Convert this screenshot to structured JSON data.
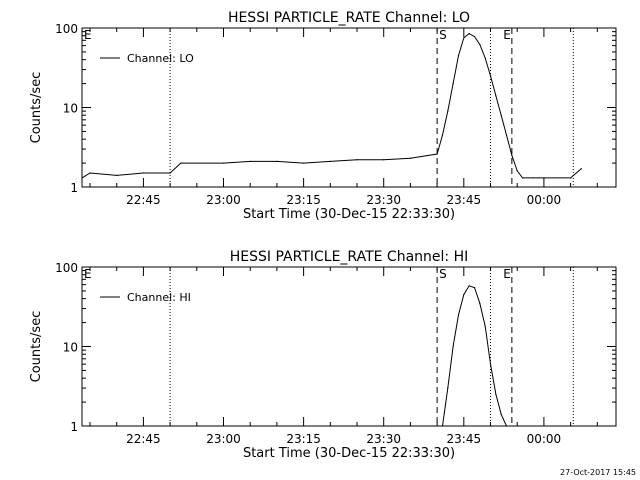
{
  "footer": {
    "timestamp": "27-Oct-2017 15:45"
  },
  "chart_data": [
    {
      "type": "line",
      "title": "HESSI PARTICLE_RATE Channel: LO",
      "xlabel": "Start Time (30-Dec-15 22:33:30)",
      "ylabel": "Counts/sec",
      "yscale": "log",
      "ylim": [
        1,
        100
      ],
      "xlim": [
        "22:33:30",
        "00:13:30"
      ],
      "xticks": [
        "22:45",
        "23:00",
        "23:15",
        "23:30",
        "23:45",
        "00:00"
      ],
      "yticks": [
        "1",
        "10",
        "100"
      ],
      "legend": {
        "position": "top-left",
        "entries": [
          "Channel: LO"
        ]
      },
      "annotations": [
        {
          "label": "E",
          "time": "22:33:30"
        },
        {
          "label": "S",
          "time": "23:40:00"
        },
        {
          "label": "E",
          "time": "23:52:00"
        }
      ],
      "vlines_dashed": [
        "23:40:00",
        "23:54:00"
      ],
      "vlines_dotted": [
        "22:50:00",
        "23:50:00",
        "00:05:30"
      ],
      "series": [
        {
          "name": "Channel: LO",
          "x": [
            "22:33:30",
            "22:35",
            "22:40",
            "22:45",
            "22:50",
            "22:52",
            "23:00",
            "23:05",
            "23:10",
            "23:15",
            "23:20",
            "23:25",
            "23:30",
            "23:35",
            "23:40",
            "23:41",
            "23:42",
            "23:43",
            "23:44",
            "23:45",
            "23:46",
            "23:47",
            "23:48",
            "23:49",
            "23:50",
            "23:51",
            "23:52",
            "23:53",
            "23:54",
            "23:55",
            "23:56",
            "23:58",
            "00:00",
            "00:05",
            "00:07"
          ],
          "y": [
            1.3,
            1.5,
            1.4,
            1.5,
            1.5,
            2.0,
            2.0,
            2.1,
            2.1,
            2.0,
            2.1,
            2.2,
            2.2,
            2.3,
            2.6,
            4.5,
            9,
            20,
            45,
            75,
            85,
            78,
            62,
            42,
            25,
            14,
            8,
            4.5,
            2.5,
            1.6,
            1.3,
            1.3,
            1.3,
            1.3,
            1.7
          ]
        }
      ]
    },
    {
      "type": "line",
      "title": "HESSI PARTICLE_RATE Channel: HI",
      "xlabel": "Start Time (30-Dec-15 22:33:30)",
      "ylabel": "Counts/sec",
      "yscale": "log",
      "ylim": [
        1,
        100
      ],
      "xlim": [
        "22:33:30",
        "00:13:30"
      ],
      "xticks": [
        "22:45",
        "23:00",
        "23:15",
        "23:30",
        "23:45",
        "00:00"
      ],
      "yticks": [
        "1",
        "10",
        "100"
      ],
      "legend": {
        "position": "top-left",
        "entries": [
          "Channel: HI"
        ]
      },
      "annotations": [
        {
          "label": "E",
          "time": "22:33:30"
        },
        {
          "label": "S",
          "time": "23:40:00"
        },
        {
          "label": "E",
          "time": "23:52:00"
        }
      ],
      "vlines_dashed": [
        "23:40:00",
        "23:54:00"
      ],
      "vlines_dotted": [
        "22:50:00",
        "23:50:00",
        "00:05:30"
      ],
      "series": [
        {
          "name": "Channel: HI",
          "x": [
            "23:41",
            "23:42",
            "23:43",
            "23:44",
            "23:45",
            "23:46",
            "23:47",
            "23:48",
            "23:49",
            "23:50",
            "23:51",
            "23:52",
            "23:53"
          ],
          "y": [
            1,
            3,
            10,
            25,
            45,
            58,
            55,
            35,
            18,
            6,
            2.5,
            1.4,
            1
          ]
        }
      ]
    }
  ]
}
